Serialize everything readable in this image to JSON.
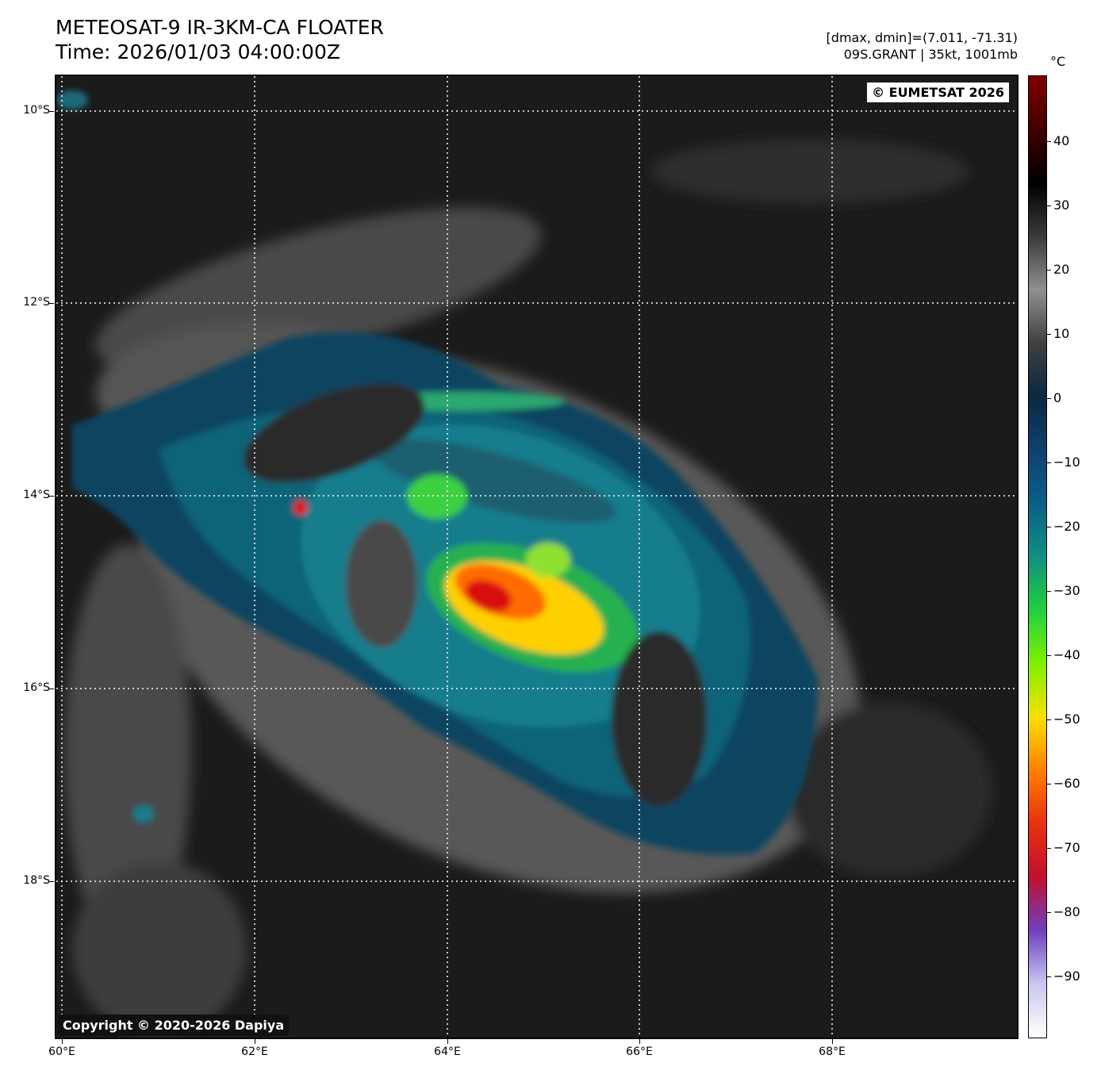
{
  "header": {
    "title_line1": "METEOSAT-9 IR-3KM-CA FLOATER",
    "title_line2": "Time: 2026/01/03 04:00:00Z",
    "range_text": "[dmax, dmin]=(7.011, -71.31)",
    "storm_text": "09S.GRANT | 35kt, 1001mb"
  },
  "map": {
    "credit_top": "© EUMETSAT 2026",
    "credit_bottom": "Copyright © 2020-2026 Dapiya",
    "lat_labels": [
      "10°S",
      "12°S",
      "14°S",
      "16°S",
      "18°S"
    ],
    "lon_labels": [
      "60°E",
      "62°E",
      "64°E",
      "66°E",
      "68°E"
    ],
    "gridline_style": "dotted white",
    "background_color": "#1a1a1a"
  },
  "colorbar": {
    "unit": "°C",
    "labels": [
      "40",
      "30",
      "20",
      "10",
      "0",
      "−10",
      "−20",
      "−30",
      "−40",
      "−50",
      "−60",
      "−70",
      "−80",
      "−90"
    ],
    "colors": [
      "#ffffff",
      "#c8c8f0",
      "#7040c0",
      "#c01030",
      "#e83010",
      "#ff8000",
      "#f8e000",
      "#80f000",
      "#20d040",
      "#109080",
      "#0a6088",
      "#104070",
      "#0a2840",
      "#404040",
      "#909090",
      "#3a3a3a",
      "#000000",
      "#400000",
      "#800000"
    ]
  }
}
